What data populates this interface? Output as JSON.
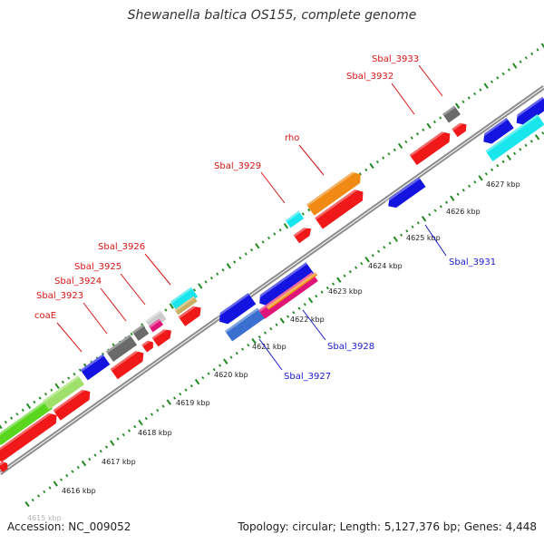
{
  "title": "Shewanella baltica OS155, complete genome",
  "footer": {
    "accession": "Accession: NC_009052",
    "summary": "Topology: circular; Length: 5,127,376 bp; Genes: 4,448"
  },
  "colors": {
    "backbone": "#8c8c8c",
    "tick": "#1f8a1f",
    "red": "#f01818",
    "blue": "#1414e0",
    "orange": "#f08a14",
    "cyan": "#18e6ec",
    "gray": "#6a6a6a",
    "green": "#5ad61e",
    "magenta": "#e01478",
    "label_red": "#d61414",
    "label_blue": "#1a1ad0"
  },
  "scale_labels": [
    {
      "kbp": 4615,
      "text": "4615 kbp"
    },
    {
      "kbp": 4616,
      "text": "4616 kbp"
    },
    {
      "kbp": 4617,
      "text": "4617 kbp"
    },
    {
      "kbp": 4618,
      "text": "4618 kbp"
    },
    {
      "kbp": 4619,
      "text": "4619 kbp"
    },
    {
      "kbp": 4620,
      "text": "4620 kbp"
    },
    {
      "kbp": 4621,
      "text": "4621 kbp"
    },
    {
      "kbp": 4622,
      "text": "4622 kbp"
    },
    {
      "kbp": 4623,
      "text": "4623 kbp"
    },
    {
      "kbp": 4624,
      "text": "4624 kbp"
    },
    {
      "kbp": 4625,
      "text": "4625 kbp"
    },
    {
      "kbp": 4626,
      "text": "4626 kbp"
    },
    {
      "kbp": 4627,
      "text": "4627 kbp"
    }
  ],
  "gene_labels": [
    {
      "text": "Sbal_3933",
      "color": "red"
    },
    {
      "text": "Sbal_3932",
      "color": "red"
    },
    {
      "text": "rho",
      "color": "red"
    },
    {
      "text": "Sbal_3929",
      "color": "red"
    },
    {
      "text": "Sbal_3926",
      "color": "red"
    },
    {
      "text": "Sbal_3925",
      "color": "red"
    },
    {
      "text": "Sbal_3924",
      "color": "red"
    },
    {
      "text": "Sbal_3923",
      "color": "red"
    },
    {
      "text": "coaE",
      "color": "red"
    },
    {
      "text": "Sbal_3931",
      "color": "blue"
    },
    {
      "text": "Sbal_3928",
      "color": "blue"
    },
    {
      "text": "Sbal_3927",
      "color": "blue"
    }
  ]
}
